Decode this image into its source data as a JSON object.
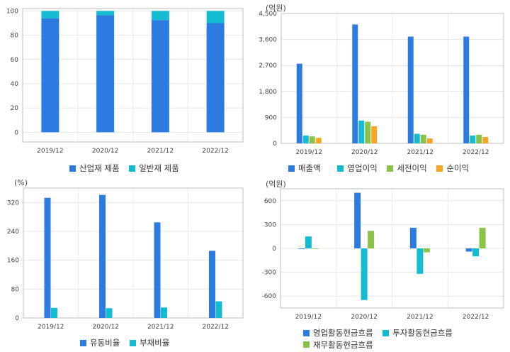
{
  "chart_data": [
    {
      "type": "bar",
      "stacked": true,
      "unit": "",
      "categories": [
        "2019/12",
        "2020/12",
        "2021/12",
        "2022/12"
      ],
      "ylim": [
        -8,
        102
      ],
      "yticks": [
        0,
        20,
        40,
        60,
        80,
        100
      ],
      "series": [
        {
          "name": "산업재 제품",
          "color": "#2c7be0",
          "values": [
            94,
            96.5,
            92.5,
            90
          ]
        },
        {
          "name": "일반재 제품",
          "color": "#13bcd0",
          "values": [
            6,
            3.5,
            7.5,
            10
          ]
        }
      ],
      "grid": true,
      "legend": "bottom"
    },
    {
      "type": "bar",
      "unit": "(억원)",
      "categories": [
        "2019/12",
        "2020/12",
        "2021/12",
        "2022/12"
      ],
      "ylim": [
        0,
        4500
      ],
      "yticks": [
        0,
        900,
        1800,
        2700,
        3600,
        4500
      ],
      "series": [
        {
          "name": "매출액",
          "color": "#2c7be0",
          "values": [
            2760,
            4120,
            3700,
            3700
          ]
        },
        {
          "name": "영업이익",
          "color": "#13bcd0",
          "values": [
            270,
            790,
            330,
            270
          ]
        },
        {
          "name": "세전이익",
          "color": "#8bc34a",
          "values": [
            240,
            750,
            300,
            300
          ]
        },
        {
          "name": "순이익",
          "color": "#f5a623",
          "values": [
            190,
            590,
            170,
            220
          ]
        }
      ],
      "grid": true,
      "legend": "bottom"
    },
    {
      "type": "bar",
      "unit": "(%)",
      "categories": [
        "2019/12",
        "2020/12",
        "2021/12",
        "2022/12"
      ],
      "ylim": [
        0,
        360
      ],
      "yticks": [
        0,
        80,
        160,
        240,
        320
      ],
      "series": [
        {
          "name": "유동비율",
          "color": "#2c7be0",
          "values": [
            333,
            341,
            265,
            186
          ]
        },
        {
          "name": "부채비율",
          "color": "#13bcd0",
          "values": [
            28,
            27,
            29,
            46
          ]
        }
      ],
      "grid": true,
      "legend": "bottom"
    },
    {
      "type": "bar",
      "unit": "(억원)",
      "categories": [
        "2019/12",
        "2020/12",
        "2021/12",
        "2022/12"
      ],
      "ylim": [
        -750,
        750
      ],
      "yticks": [
        -600,
        -300,
        0,
        300,
        600
      ],
      "series": [
        {
          "name": "영업활동현금흐름",
          "color": "#2c7be0",
          "values": [
            0,
            700,
            260,
            -40
          ]
        },
        {
          "name": "투자활동현금흐름",
          "color": "#13bcd0",
          "values": [
            150,
            -650,
            -320,
            -100
          ]
        },
        {
          "name": "재무활동현금흐름",
          "color": "#8bc34a",
          "values": [
            -5,
            220,
            -50,
            260
          ]
        }
      ],
      "grid": true,
      "legend": "bottom"
    }
  ]
}
